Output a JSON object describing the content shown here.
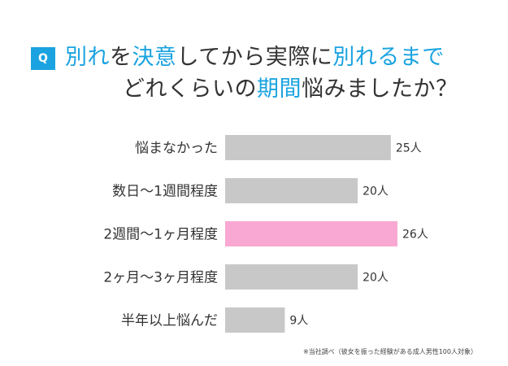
{
  "title": {
    "badge": "Q",
    "line1": [
      {
        "text": "別れ",
        "highlight": true
      },
      {
        "text": "を",
        "highlight": false
      },
      {
        "text": "決意",
        "highlight": true
      },
      {
        "text": "してから実際に",
        "highlight": false
      },
      {
        "text": "別れるまで",
        "highlight": true
      }
    ],
    "line2": [
      {
        "text": "どれくらいの",
        "highlight": false
      },
      {
        "text": "期間",
        "highlight": true
      },
      {
        "text": "悩みましたか？",
        "highlight": false
      }
    ]
  },
  "colors": {
    "accent": "#1aa3e0",
    "bar_default": "#c8c8c8",
    "bar_highlight": "#f9a8d4",
    "text": "#333333"
  },
  "chart_data": {
    "type": "bar",
    "orientation": "horizontal",
    "categories": [
      "悩まなかった",
      "数日〜1週間程度",
      "2週間〜1ヶ月程度",
      "2ヶ月〜3ヶ月程度",
      "半年以上悩んだ"
    ],
    "values": [
      25,
      20,
      26,
      20,
      9
    ],
    "value_labels": [
      "25人",
      "20人",
      "26人",
      "20人",
      "9人"
    ],
    "highlight_index": 2,
    "unit": "人",
    "xlim": [
      0,
      26
    ],
    "grid": false
  },
  "footnote": "※当社調べ（彼女を振った経験がある成人男性100人対象）"
}
